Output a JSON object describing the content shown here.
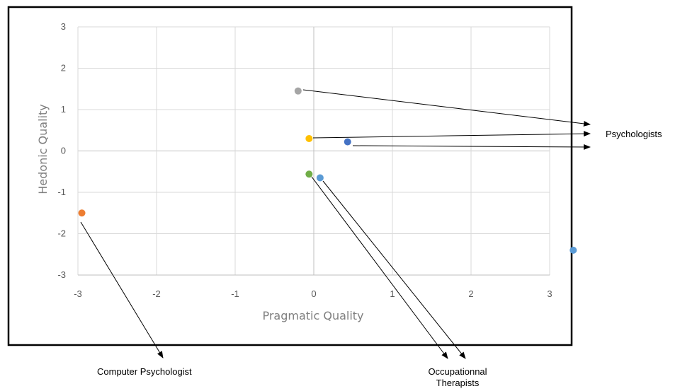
{
  "chart_data": {
    "type": "scatter",
    "xlabel": "Pragmatic Quality",
    "ylabel": "Hedonic Quality",
    "xlim": [
      -3,
      3
    ],
    "ylim": [
      -3,
      3
    ],
    "x_ticks": [
      "-3",
      "-2",
      "-1",
      "0",
      "1",
      "2",
      "3"
    ],
    "y_ticks": [
      "3",
      "2",
      "1",
      "0",
      "-1",
      "-2",
      "-3"
    ],
    "grid": true,
    "points": [
      {
        "x": -0.2,
        "y": 1.45,
        "color": "#a5a5a5"
      },
      {
        "x": -0.06,
        "y": 0.3,
        "color": "#ffc000"
      },
      {
        "x": 0.43,
        "y": 0.22,
        "color": "#4472c4"
      },
      {
        "x": -0.06,
        "y": -0.56,
        "color": "#70ad47"
      },
      {
        "x": 0.08,
        "y": -0.65,
        "color": "#5b9bd5"
      },
      {
        "x": -2.95,
        "y": -1.5,
        "color": "#ed7d31"
      },
      {
        "x": 3.3,
        "y": -2.4,
        "color": "#5b9bd5"
      }
    ],
    "annotations": [
      {
        "lines": [
          "Psychologists"
        ]
      },
      {
        "lines": [
          "Computer Psychologist"
        ]
      },
      {
        "lines": [
          "Occupationnal",
          "Therapists"
        ]
      }
    ]
  }
}
